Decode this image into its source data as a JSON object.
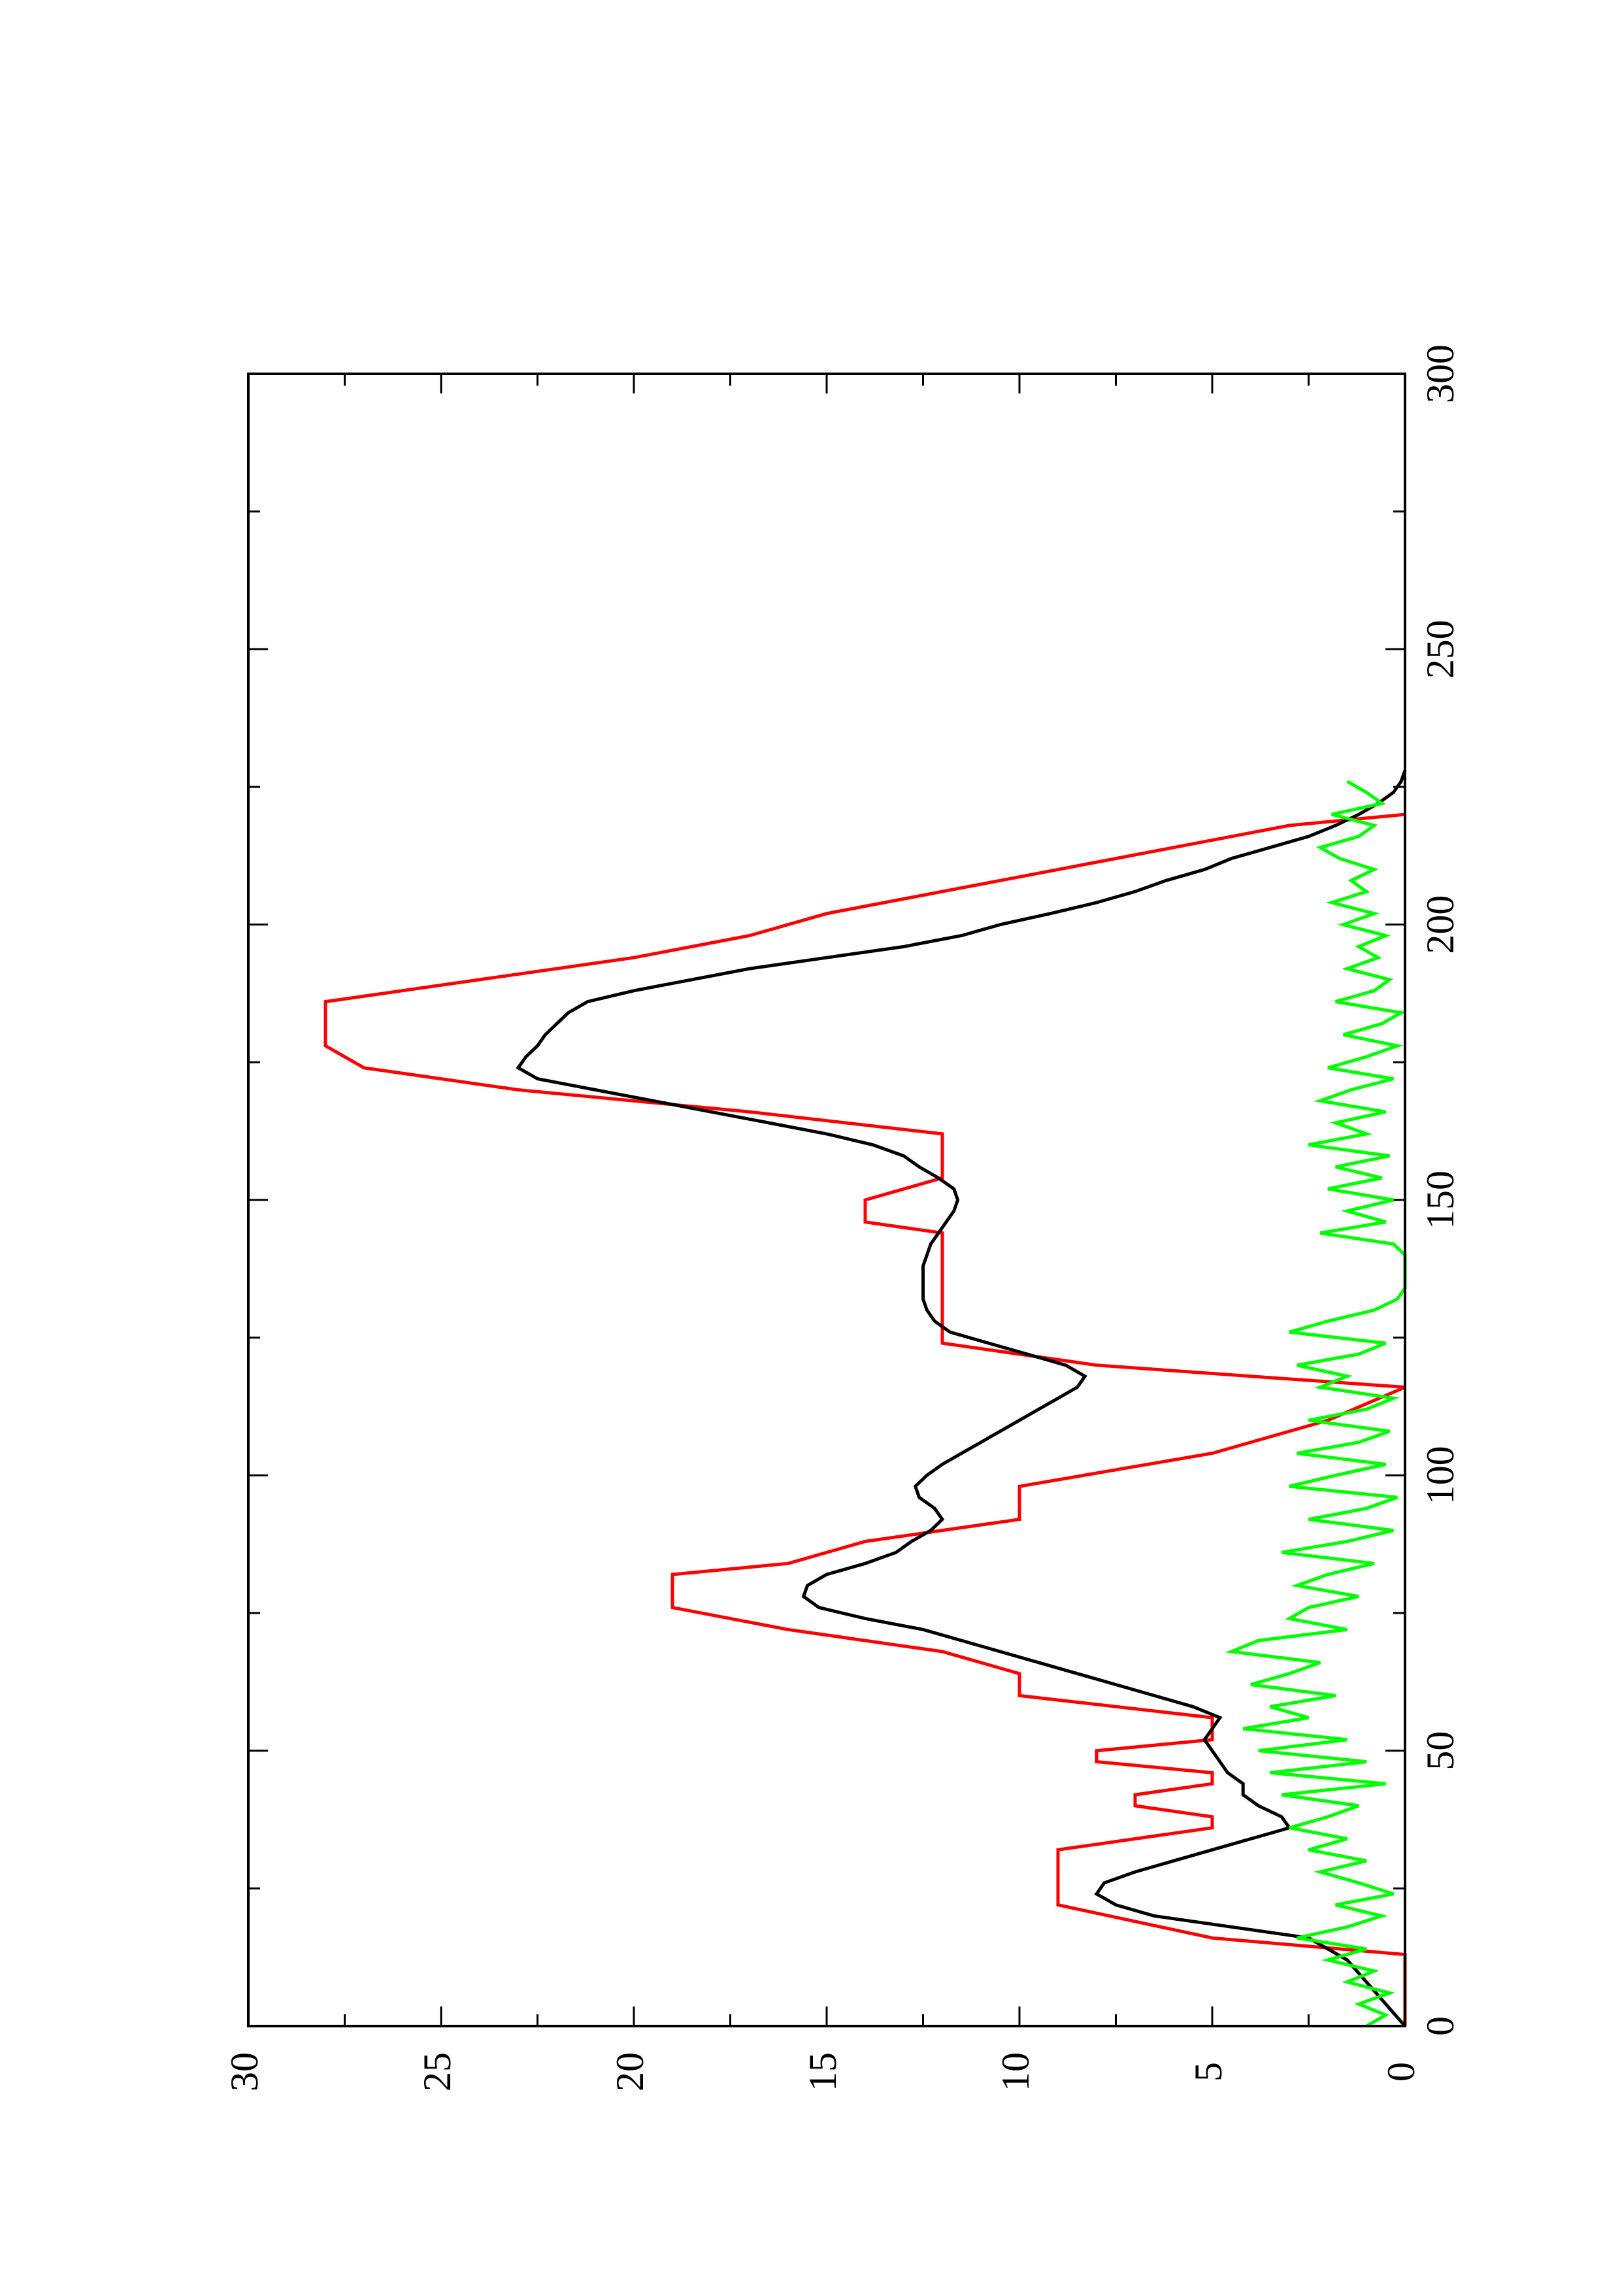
{
  "chart_data": {
    "type": "line",
    "title": "",
    "xlabel": "",
    "ylabel": "",
    "xlim": [
      0,
      300
    ],
    "ylim": [
      0,
      30
    ],
    "x_ticks": [
      0,
      50,
      100,
      150,
      200,
      250,
      300
    ],
    "x_tick_labels": [
      "0",
      "50",
      "100",
      "150",
      "200",
      "250",
      "300"
    ],
    "y_ticks": [
      0,
      5,
      10,
      15,
      20,
      25,
      30
    ],
    "y_tick_labels": [
      "0",
      "5",
      "10",
      "15",
      "20",
      "25",
      "30"
    ],
    "orientation": "rotated-90-ccw",
    "grid": false,
    "legend": "none",
    "series": [
      {
        "color": "#ff0000",
        "x": [
          0,
          13,
          16,
          22,
          26,
          32,
          36,
          38,
          40,
          42,
          44,
          46,
          48,
          50,
          52,
          54,
          56,
          60,
          64,
          68,
          72,
          76,
          78,
          80,
          82,
          84,
          88,
          92,
          98,
          104,
          110,
          116,
          118,
          120,
          124,
          128,
          132,
          136,
          140,
          144,
          146,
          150,
          154,
          158,
          162,
          166,
          170,
          174,
          178,
          182,
          186,
          190,
          194,
          198,
          202,
          206,
          210,
          214,
          218,
          220
        ],
        "y": [
          0,
          0,
          5,
          9,
          9,
          9,
          5,
          5,
          7,
          7,
          5,
          5,
          8,
          8,
          5,
          5,
          5,
          10,
          10,
          12,
          16,
          19,
          19,
          19,
          19,
          16,
          14,
          10,
          10,
          5,
          2,
          0,
          4,
          8,
          12,
          12,
          12,
          12,
          12,
          12,
          14,
          14,
          12,
          12,
          12,
          17,
          23,
          27,
          28,
          28,
          28,
          24,
          20,
          17,
          15,
          12,
          9,
          6,
          3,
          0
        ]
      },
      {
        "color": "#000000",
        "x": [
          0,
          4,
          8,
          12,
          16,
          18,
          20,
          22,
          24,
          26,
          28,
          30,
          32,
          34,
          35,
          36,
          38,
          40,
          42,
          44,
          46,
          48,
          50,
          52,
          54,
          56,
          58,
          60,
          62,
          64,
          66,
          68,
          70,
          72,
          74,
          76,
          78,
          80,
          82,
          84,
          86,
          88,
          90,
          92,
          94,
          96,
          98,
          100,
          102,
          104,
          106,
          108,
          110,
          112,
          114,
          116,
          118,
          120,
          122,
          124,
          126,
          128,
          130,
          132,
          134,
          136,
          138,
          140,
          142,
          144,
          146,
          148,
          150,
          152,
          154,
          156,
          158,
          160,
          162,
          164,
          166,
          168,
          170,
          172,
          174,
          176,
          178,
          180,
          182,
          184,
          186,
          188,
          190,
          192,
          194,
          196,
          198,
          200,
          202,
          204,
          206,
          208,
          210,
          212,
          214,
          216,
          218,
          220,
          222,
          224,
          226,
          228
        ],
        "y": [
          0,
          0.5,
          1.0,
          1.5,
          2.5,
          4.5,
          6.5,
          7.5,
          8.0,
          7.8,
          7.0,
          6.0,
          5.0,
          4.0,
          3.5,
          3.0,
          3.2,
          3.8,
          4.2,
          4.2,
          4.6,
          4.8,
          5.0,
          5.2,
          5.0,
          4.8,
          5.5,
          6.5,
          7.5,
          8.5,
          9.5,
          10.5,
          11.5,
          12.5,
          14.0,
          15.2,
          15.6,
          15.5,
          15.0,
          14.0,
          13.2,
          12.8,
          12.3,
          12.0,
          12.2,
          12.6,
          12.7,
          12.4,
          12.0,
          11.5,
          11.0,
          10.5,
          10.0,
          9.5,
          9.0,
          8.5,
          8.3,
          8.8,
          9.8,
          10.8,
          11.8,
          12.2,
          12.4,
          12.5,
          12.5,
          12.5,
          12.5,
          12.4,
          12.3,
          12.1,
          11.9,
          11.7,
          11.6,
          11.7,
          12.1,
          12.6,
          13.0,
          13.8,
          15.0,
          16.5,
          18.0,
          19.5,
          21.0,
          22.5,
          23.0,
          22.8,
          22.5,
          22.3,
          22.0,
          21.7,
          21.2,
          20.0,
          18.5,
          17.0,
          15.0,
          13.0,
          11.5,
          10.5,
          9.2,
          8.0,
          7.0,
          6.2,
          5.2,
          4.5,
          3.5,
          2.5,
          1.8,
          1.2,
          0.7,
          0.3,
          0.1,
          0
        ]
      },
      {
        "color": "#00ff00",
        "x": [
          0,
          2,
          4,
          6,
          8,
          10,
          12,
          14,
          16,
          18,
          20,
          22,
          24,
          26,
          28,
          30,
          32,
          34,
          36,
          38,
          40,
          42,
          44,
          46,
          48,
          50,
          52,
          54,
          56,
          58,
          60,
          62,
          64,
          66,
          68,
          70,
          72,
          74,
          76,
          78,
          80,
          82,
          84,
          86,
          88,
          90,
          92,
          94,
          96,
          98,
          100,
          102,
          104,
          106,
          108,
          110,
          112,
          114,
          116,
          118,
          120,
          122,
          124,
          126,
          128,
          130,
          132,
          134,
          136,
          138,
          140,
          142,
          144,
          146,
          148,
          150,
          152,
          154,
          156,
          158,
          160,
          162,
          164,
          166,
          168,
          170,
          172,
          174,
          176,
          178,
          180,
          182,
          184,
          186,
          188,
          190,
          192,
          194,
          196,
          198,
          200,
          202,
          204,
          206,
          208,
          210,
          212,
          214,
          216,
          218,
          220,
          222,
          224,
          226
        ],
        "y": [
          1.0,
          0.5,
          1.2,
          0.4,
          1.5,
          0.8,
          2.0,
          1.0,
          2.8,
          1.5,
          0.6,
          1.8,
          0.3,
          1.2,
          2.2,
          1.0,
          2.5,
          1.5,
          3.0,
          2.0,
          1.2,
          3.2,
          0.5,
          3.5,
          1.0,
          3.8,
          1.5,
          4.2,
          2.5,
          3.5,
          1.8,
          4.0,
          3.0,
          2.2,
          4.5,
          3.8,
          1.5,
          3.0,
          2.5,
          1.2,
          2.8,
          2.0,
          0.8,
          3.2,
          1.5,
          0.3,
          2.5,
          1.0,
          0.2,
          3.0,
          1.8,
          0.5,
          2.8,
          1.2,
          0.4,
          2.5,
          1.0,
          0.3,
          2.2,
          1.5,
          2.8,
          1.2,
          0.5,
          3.0,
          2.0,
          0.8,
          0.2,
          0,
          0,
          0,
          0,
          0.3,
          2.2,
          0.5,
          1.5,
          0.3,
          2.0,
          0.6,
          1.8,
          0.4,
          2.5,
          1.0,
          1.8,
          0.5,
          2.2,
          1.4,
          0.3,
          2.0,
          1.0,
          0.2,
          1.6,
          0.6,
          0.1,
          1.8,
          0.8,
          0.4,
          1.5,
          0.7,
          1.2,
          0.5,
          1.6,
          0.8,
          1.9,
          1.0,
          1.4,
          0.8,
          1.7,
          2.2,
          1.2,
          0.8,
          1.9,
          0.6,
          1.0,
          1.5
        ]
      }
    ]
  }
}
